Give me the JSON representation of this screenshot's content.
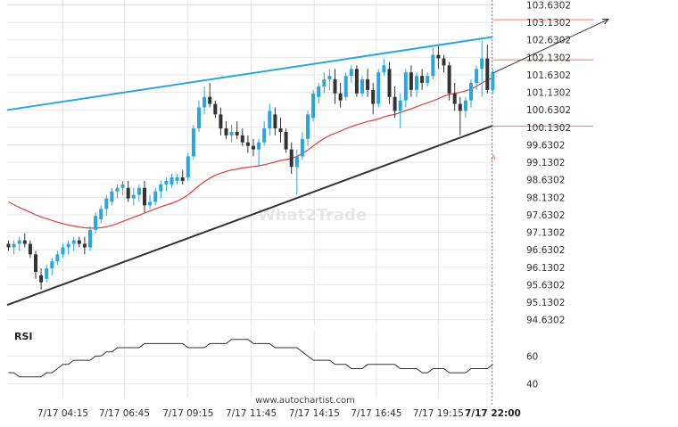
{
  "chart_data": {
    "type": "candlestick",
    "watermark": "What2Trade",
    "source": "www.autochartist.com",
    "price_axis": {
      "ticks": [
        "103.6302",
        "103.1302",
        "102.6302",
        "102.1302",
        "101.6302",
        "101.1302",
        "100.6302",
        "100.1302",
        "99.6302",
        "99.1302",
        "98.6302",
        "98.1302",
        "97.6302",
        "97.1302",
        "96.6302",
        "96.1302",
        "95.6302",
        "95.1302",
        "94.6302"
      ],
      "range": [
        94.47,
        103.77
      ]
    },
    "time_axis": {
      "ticks": [
        "7/17 04:15",
        "7/17 06:45",
        "7/17 09:15",
        "7/17 11:45",
        "7/17 14:15",
        "7/17 16:45",
        "7/17 19:15",
        "7/17 22:00"
      ],
      "highlight": "7/17 22:00"
    },
    "candles": [
      [
        96.8,
        96.9,
        96.6,
        96.7
      ],
      [
        96.7,
        96.9,
        96.5,
        96.8
      ],
      [
        96.8,
        97.0,
        96.6,
        96.9
      ],
      [
        96.9,
        97.1,
        96.7,
        96.8
      ],
      [
        96.8,
        96.9,
        96.4,
        96.5
      ],
      [
        96.5,
        96.6,
        95.8,
        96.0
      ],
      [
        95.9,
        96.1,
        95.5,
        95.7
      ],
      [
        95.8,
        96.2,
        95.7,
        96.1
      ],
      [
        96.1,
        96.4,
        95.9,
        96.3
      ],
      [
        96.3,
        96.6,
        96.2,
        96.5
      ],
      [
        96.5,
        96.8,
        96.4,
        96.7
      ],
      [
        96.7,
        96.9,
        96.5,
        96.8
      ],
      [
        96.8,
        97.0,
        96.6,
        96.9
      ],
      [
        96.9,
        97.0,
        96.7,
        96.8
      ],
      [
        96.8,
        97.0,
        96.5,
        96.7
      ],
      [
        96.7,
        97.3,
        96.6,
        97.2
      ],
      [
        97.2,
        97.7,
        97.1,
        97.6
      ],
      [
        97.5,
        97.9,
        97.4,
        97.8
      ],
      [
        97.8,
        98.2,
        97.6,
        98.1
      ],
      [
        98.0,
        98.4,
        97.9,
        98.3
      ],
      [
        98.3,
        98.5,
        98.1,
        98.4
      ],
      [
        98.4,
        98.6,
        98.2,
        98.5
      ],
      [
        98.4,
        98.6,
        98.0,
        98.1
      ],
      [
        98.1,
        98.4,
        97.9,
        98.2
      ],
      [
        98.2,
        98.5,
        98.0,
        98.4
      ],
      [
        98.4,
        98.6,
        97.7,
        97.9
      ],
      [
        97.9,
        98.2,
        97.8,
        98.0
      ],
      [
        98.0,
        98.4,
        97.9,
        98.3
      ],
      [
        98.3,
        98.6,
        98.1,
        98.5
      ],
      [
        98.5,
        98.7,
        98.3,
        98.6
      ],
      [
        98.5,
        98.8,
        98.4,
        98.7
      ],
      [
        98.6,
        98.8,
        98.5,
        98.7
      ],
      [
        98.7,
        98.9,
        98.5,
        98.6
      ],
      [
        98.7,
        99.4,
        98.6,
        99.3
      ],
      [
        99.3,
        100.2,
        99.2,
        100.1
      ],
      [
        100.1,
        100.9,
        100.0,
        100.7
      ],
      [
        100.7,
        101.3,
        100.5,
        101.0
      ],
      [
        101.0,
        101.4,
        100.7,
        100.8
      ],
      [
        100.8,
        100.9,
        100.4,
        100.5
      ],
      [
        100.5,
        100.7,
        99.9,
        100.1
      ],
      [
        100.1,
        100.3,
        99.8,
        99.9
      ],
      [
        99.9,
        100.2,
        99.7,
        100.0
      ],
      [
        100.0,
        100.3,
        99.8,
        99.9
      ],
      [
        99.9,
        100.1,
        99.6,
        99.7
      ],
      [
        99.7,
        99.9,
        99.4,
        99.6
      ],
      [
        99.6,
        99.8,
        99.3,
        99.5
      ],
      [
        99.5,
        99.8,
        99.0,
        99.7
      ],
      [
        99.7,
        100.3,
        99.6,
        100.1
      ],
      [
        100.1,
        100.8,
        99.9,
        100.6
      ],
      [
        100.5,
        100.7,
        99.9,
        100.1
      ],
      [
        100.1,
        100.4,
        99.7,
        100.0
      ],
      [
        100.0,
        100.1,
        99.4,
        99.5
      ],
      [
        99.5,
        99.7,
        98.8,
        99.0
      ],
      [
        99.0,
        99.5,
        98.2,
        99.3
      ],
      [
        99.3,
        100.0,
        99.2,
        99.8
      ],
      [
        99.8,
        100.6,
        99.6,
        100.5
      ],
      [
        100.4,
        101.2,
        100.3,
        101.1
      ],
      [
        101.0,
        101.4,
        100.8,
        101.3
      ],
      [
        101.3,
        101.7,
        101.1,
        101.5
      ],
      [
        101.5,
        101.8,
        101.2,
        101.6
      ],
      [
        101.5,
        101.8,
        100.8,
        101.1
      ],
      [
        101.1,
        101.4,
        100.7,
        100.9
      ],
      [
        101.0,
        101.7,
        100.9,
        101.6
      ],
      [
        101.6,
        101.9,
        101.4,
        101.8
      ],
      [
        101.8,
        101.9,
        101.0,
        101.1
      ],
      [
        101.1,
        101.6,
        101.0,
        101.5
      ],
      [
        101.5,
        101.8,
        101.0,
        101.2
      ],
      [
        101.2,
        101.4,
        100.5,
        100.8
      ],
      [
        100.8,
        101.8,
        100.7,
        101.7
      ],
      [
        101.7,
        102.1,
        101.6,
        101.9
      ],
      [
        101.8,
        102.0,
        100.8,
        101.0
      ],
      [
        101.0,
        101.3,
        100.4,
        100.6
      ],
      [
        100.6,
        101.1,
        100.1,
        100.9
      ],
      [
        100.9,
        101.8,
        100.7,
        101.7
      ],
      [
        101.7,
        101.9,
        101.0,
        101.2
      ],
      [
        101.2,
        101.7,
        101.0,
        101.6
      ],
      [
        101.6,
        101.8,
        101.2,
        101.4
      ],
      [
        101.4,
        101.7,
        101.3,
        101.6
      ],
      [
        101.6,
        102.4,
        101.5,
        102.2
      ],
      [
        102.2,
        102.5,
        101.8,
        102.1
      ],
      [
        102.1,
        102.2,
        101.7,
        101.9
      ],
      [
        101.9,
        102.0,
        100.9,
        101.1
      ],
      [
        101.1,
        101.4,
        100.6,
        100.8
      ],
      [
        100.8,
        101.0,
        99.9,
        100.6
      ],
      [
        100.6,
        101.0,
        100.4,
        100.9
      ],
      [
        100.9,
        101.5,
        100.7,
        101.4
      ],
      [
        101.4,
        101.9,
        101.2,
        101.8
      ],
      [
        101.8,
        102.6,
        101.0,
        102.1
      ],
      [
        102.1,
        102.5,
        101.1,
        101.2
      ],
      [
        101.2,
        101.8,
        101.1,
        101.7
      ]
    ],
    "moving_average": [
      98.0,
      97.92,
      97.84,
      97.77,
      97.7,
      97.63,
      97.57,
      97.52,
      97.47,
      97.42,
      97.38,
      97.34,
      97.31,
      97.28,
      97.26,
      97.25,
      97.25,
      97.26,
      97.29,
      97.33,
      97.38,
      97.44,
      97.5,
      97.56,
      97.62,
      97.68,
      97.74,
      97.8,
      97.86,
      97.91,
      97.96,
      98.02,
      98.1,
      98.2,
      98.33,
      98.46,
      98.58,
      98.68,
      98.76,
      98.82,
      98.87,
      98.91,
      98.94,
      98.97,
      98.99,
      99.01,
      99.03,
      99.06,
      99.1,
      99.14,
      99.18,
      99.21,
      99.24,
      99.3,
      99.38,
      99.48,
      99.6,
      99.71,
      99.81,
      99.9,
      99.96,
      100.02,
      100.09,
      100.15,
      100.2,
      100.25,
      100.3,
      100.33,
      100.37,
      100.43,
      100.47,
      100.5,
      100.55,
      100.61,
      100.66,
      100.72,
      100.78,
      100.83,
      100.89,
      100.95,
      101.02,
      101.07,
      101.1,
      101.13,
      101.17,
      101.23,
      101.3,
      101.4,
      101.48,
      101.55
    ],
    "rsi": {
      "label": "RSI",
      "ticks": [
        "60",
        "40"
      ],
      "range": [
        34,
        75
      ],
      "values": [
        48,
        48,
        45,
        45,
        45,
        45,
        45,
        48,
        48,
        51,
        54,
        54,
        57,
        57,
        57,
        57,
        60,
        60,
        63,
        63,
        66,
        66,
        66,
        66,
        66,
        69,
        69,
        69,
        69,
        69,
        69,
        69,
        69,
        66,
        66,
        66,
        66,
        69,
        69,
        69,
        69,
        72,
        72,
        72,
        72,
        69,
        69,
        69,
        69,
        66,
        66,
        66,
        66,
        66,
        63,
        60,
        57,
        57,
        57,
        57,
        54,
        54,
        54,
        51,
        51,
        51,
        54,
        54,
        54,
        54,
        54,
        54,
        51,
        51,
        51,
        51,
        48,
        48,
        51,
        51,
        51,
        48,
        48,
        48,
        48,
        51,
        51,
        51,
        51,
        54
      ]
    },
    "trend_lines": {
      "resistance": {
        "color": "#2aa6de",
        "start": {
          "x": 0,
          "y": 100.625
        },
        "end": {
          "x": 89,
          "y": 102.715
        }
      },
      "support": {
        "color": "#333333",
        "start": {
          "x": 0,
          "y": 95.05
        },
        "end": {
          "x": 89,
          "y": 100.18
        }
      }
    },
    "levels": [
      {
        "value": 103.205,
        "color": "#e8805f"
      },
      {
        "value": 102.06,
        "color": "#e8805f"
      },
      {
        "value": 100.16,
        "color": "#e8805f"
      }
    ],
    "forecast_arrow": {
      "from": {
        "x": 89,
        "y": 101.68
      },
      "to": {
        "x": 104,
        "y": 103.22
      }
    },
    "marker": {
      "label": "A",
      "color": "#e8805f"
    },
    "colors": {
      "bull": "#2aa6de",
      "bear": "#333333",
      "ma": "#e03b3b",
      "rsi_line": "#333333",
      "grid": "#e6e6e6",
      "cursor": "#2aa6de"
    }
  }
}
